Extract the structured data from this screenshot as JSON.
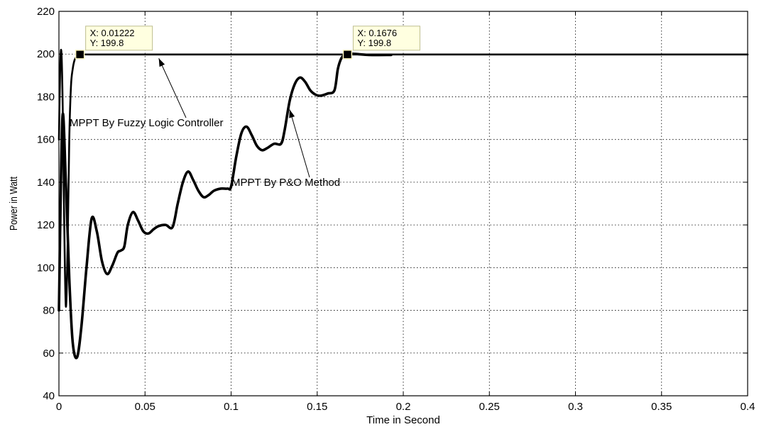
{
  "chart_data": {
    "type": "line",
    "title": "",
    "xlabel": "Time in Second",
    "ylabel": "Power in Watt",
    "xlim": [
      0,
      0.4
    ],
    "ylim": [
      40,
      220
    ],
    "xticks": [
      0,
      0.05,
      0.1,
      0.15,
      0.2,
      0.25,
      0.3,
      0.35,
      0.4
    ],
    "xtick_labels": [
      "0",
      "0.05",
      "0.1",
      "0.15",
      "0.2",
      "0.25",
      "0.3",
      "0.35",
      "0.4"
    ],
    "yticks": [
      40,
      60,
      80,
      100,
      120,
      140,
      160,
      180,
      200,
      220
    ],
    "ytick_labels": [
      "40",
      "60",
      "80",
      "100",
      "120",
      "140",
      "160",
      "180",
      "200",
      "220"
    ],
    "grid": true,
    "series": [
      {
        "name": "MPPT By Fuzzy Logic Controller",
        "color": "#000000",
        "x": [
          0,
          0.0008,
          0.0015,
          0.0022,
          0.003,
          0.004,
          0.005,
          0.006,
          0.007,
          0.008,
          0.009,
          0.01,
          0.011,
          0.01222,
          0.02,
          0.05,
          0.1,
          0.2,
          0.3,
          0.4
        ],
        "y": [
          160,
          196,
          200,
          175,
          125,
          82,
          108,
          160,
          185,
          193,
          197,
          198.5,
          199.4,
          199.8,
          199.8,
          199.8,
          199.8,
          199.8,
          199.8,
          199.8
        ]
      },
      {
        "name": "MPPT By P&O Method",
        "color": "#000000",
        "x": [
          0,
          0.002,
          0.004,
          0.006,
          0.008,
          0.0105,
          0.013,
          0.016,
          0.019,
          0.022,
          0.025,
          0.028,
          0.031,
          0.034,
          0.036,
          0.038,
          0.04,
          0.043,
          0.046,
          0.049,
          0.052,
          0.055,
          0.058,
          0.062,
          0.066,
          0.069,
          0.072,
          0.075,
          0.078,
          0.081,
          0.084,
          0.087,
          0.09,
          0.094,
          0.098,
          0.1,
          0.103,
          0.106,
          0.109,
          0.112,
          0.115,
          0.118,
          0.121,
          0.125,
          0.129,
          0.131,
          0.134,
          0.137,
          0.14,
          0.143,
          0.146,
          0.149,
          0.152,
          0.156,
          0.16,
          0.162,
          0.164,
          0.166,
          0.1676,
          0.17,
          0.18,
          0.193
        ],
        "y": [
          80,
          170,
          140,
          95,
          65,
          58,
          72,
          100,
          123,
          117,
          103,
          97,
          101,
          107,
          108,
          110,
          120,
          126,
          122,
          117,
          116,
          118,
          119.5,
          120,
          119,
          130,
          140,
          145,
          141,
          136,
          133,
          134,
          136,
          137,
          137,
          138,
          152,
          163,
          166,
          162,
          157,
          155,
          156,
          158,
          158,
          164,
          178,
          186,
          189,
          187,
          183,
          181,
          180.5,
          181.5,
          183,
          193,
          198,
          199.5,
          199.8,
          200.2,
          199.6,
          199.6
        ]
      }
    ],
    "annotations": [
      {
        "text": "MPPT By Fuzzy Logic Controller",
        "arrow_to": [
          0.058,
          198
        ]
      },
      {
        "text": "MPPT By P&O Method",
        "arrow_to": [
          0.134,
          174
        ]
      }
    ],
    "datatips": [
      {
        "x_label": "X: 0.01222",
        "y_label": "Y: 199.8",
        "x": 0.01222,
        "y": 199.8
      },
      {
        "x_label": "X: 0.1676",
        "y_label": "Y: 199.8",
        "x": 0.1676,
        "y": 199.8
      }
    ]
  }
}
